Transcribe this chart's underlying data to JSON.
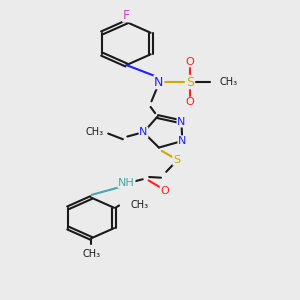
{
  "bg_color": "#ebebeb",
  "bond_color": "#1a1a1a",
  "N_color": "#2020ff",
  "O_color": "#ff2020",
  "S_color": "#ccaa00",
  "F_color": "#cc44cc",
  "NH_color": "#44aaaa",
  "figsize": [
    3.0,
    3.0
  ],
  "dpi": 100,
  "xlim": [
    0,
    10
  ],
  "ylim": [
    0,
    13
  ]
}
